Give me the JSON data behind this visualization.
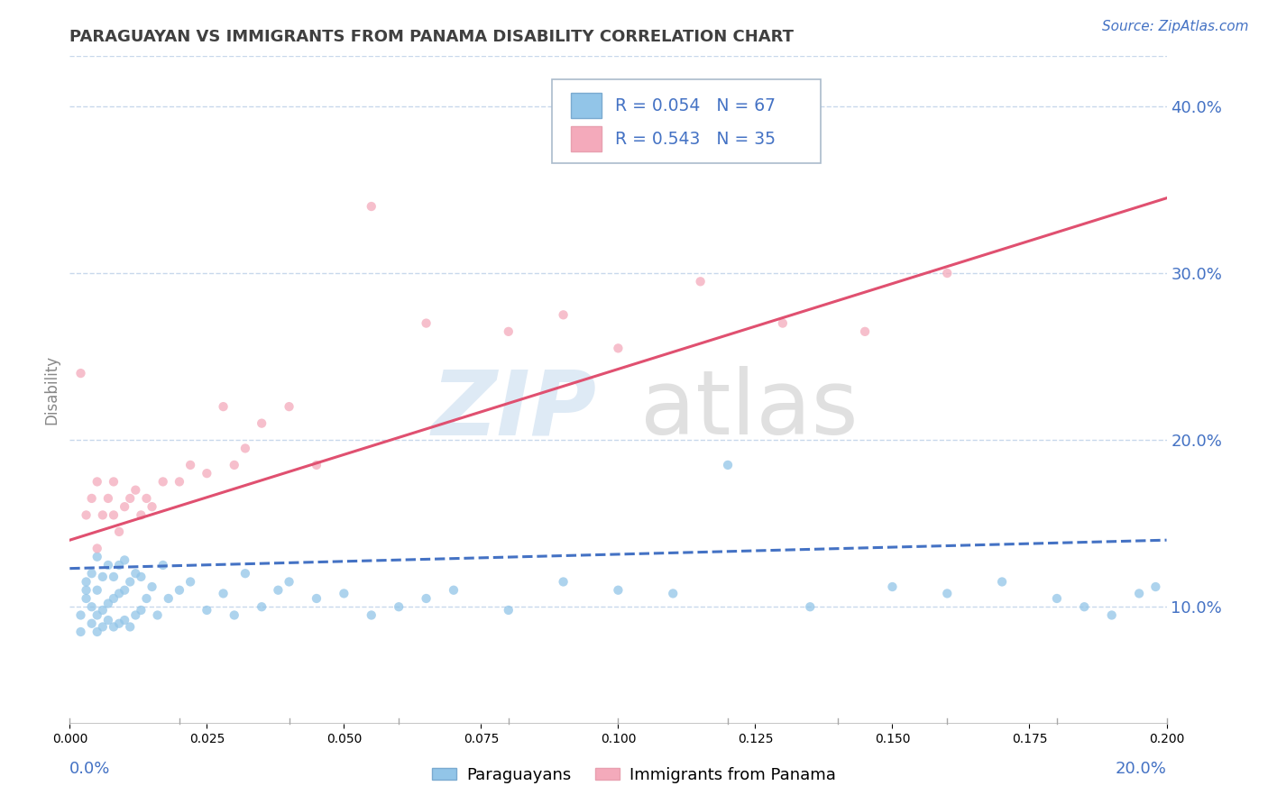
{
  "title": "PARAGUAYAN VS IMMIGRANTS FROM PANAMA DISABILITY CORRELATION CHART",
  "source": "Source: ZipAtlas.com",
  "ylabel": "Disability",
  "xlim": [
    0.0,
    0.2
  ],
  "ylim": [
    0.03,
    0.43
  ],
  "yticks": [
    0.1,
    0.2,
    0.3,
    0.4
  ],
  "ytick_labels": [
    "10.0%",
    "20.0%",
    "30.0%",
    "40.0%"
  ],
  "blue_R": 0.054,
  "blue_N": 67,
  "pink_R": 0.543,
  "pink_N": 35,
  "blue_color": "#92C5E8",
  "pink_color": "#F4AABB",
  "blue_line_color": "#4472C4",
  "pink_line_color": "#E05070",
  "grid_color": "#C8D8EB",
  "text_color": "#4472C4",
  "title_color": "#404040",
  "background": "#FFFFFF",
  "blue_scatter_x": [
    0.002,
    0.002,
    0.003,
    0.003,
    0.003,
    0.004,
    0.004,
    0.004,
    0.005,
    0.005,
    0.005,
    0.005,
    0.006,
    0.006,
    0.006,
    0.007,
    0.007,
    0.007,
    0.008,
    0.008,
    0.008,
    0.009,
    0.009,
    0.009,
    0.01,
    0.01,
    0.01,
    0.011,
    0.011,
    0.012,
    0.012,
    0.013,
    0.013,
    0.014,
    0.015,
    0.016,
    0.017,
    0.018,
    0.02,
    0.022,
    0.025,
    0.028,
    0.03,
    0.032,
    0.035,
    0.038,
    0.04,
    0.045,
    0.05,
    0.055,
    0.06,
    0.065,
    0.07,
    0.08,
    0.09,
    0.1,
    0.11,
    0.12,
    0.135,
    0.15,
    0.16,
    0.17,
    0.18,
    0.185,
    0.19,
    0.195,
    0.198
  ],
  "blue_scatter_y": [
    0.085,
    0.095,
    0.105,
    0.11,
    0.115,
    0.09,
    0.1,
    0.12,
    0.085,
    0.095,
    0.11,
    0.13,
    0.088,
    0.098,
    0.118,
    0.092,
    0.102,
    0.125,
    0.088,
    0.105,
    0.118,
    0.09,
    0.108,
    0.125,
    0.092,
    0.11,
    0.128,
    0.088,
    0.115,
    0.095,
    0.12,
    0.098,
    0.118,
    0.105,
    0.112,
    0.095,
    0.125,
    0.105,
    0.11,
    0.115,
    0.098,
    0.108,
    0.095,
    0.12,
    0.1,
    0.11,
    0.115,
    0.105,
    0.108,
    0.095,
    0.1,
    0.105,
    0.11,
    0.098,
    0.115,
    0.11,
    0.108,
    0.185,
    0.1,
    0.112,
    0.108,
    0.115,
    0.105,
    0.1,
    0.095,
    0.108,
    0.112
  ],
  "pink_scatter_x": [
    0.002,
    0.003,
    0.004,
    0.005,
    0.005,
    0.006,
    0.007,
    0.008,
    0.008,
    0.009,
    0.01,
    0.011,
    0.012,
    0.013,
    0.014,
    0.015,
    0.017,
    0.02,
    0.022,
    0.025,
    0.028,
    0.03,
    0.032,
    0.035,
    0.04,
    0.045,
    0.055,
    0.065,
    0.08,
    0.09,
    0.1,
    0.115,
    0.13,
    0.145,
    0.16
  ],
  "pink_scatter_y": [
    0.24,
    0.155,
    0.165,
    0.175,
    0.135,
    0.155,
    0.165,
    0.155,
    0.175,
    0.145,
    0.16,
    0.165,
    0.17,
    0.155,
    0.165,
    0.16,
    0.175,
    0.175,
    0.185,
    0.18,
    0.22,
    0.185,
    0.195,
    0.21,
    0.22,
    0.185,
    0.34,
    0.27,
    0.265,
    0.275,
    0.255,
    0.295,
    0.27,
    0.265,
    0.3
  ],
  "blue_trend_x": [
    0.0,
    0.2
  ],
  "blue_trend_y": [
    0.123,
    0.14
  ],
  "pink_trend_x": [
    0.0,
    0.2
  ],
  "pink_trend_y": [
    0.14,
    0.345
  ]
}
